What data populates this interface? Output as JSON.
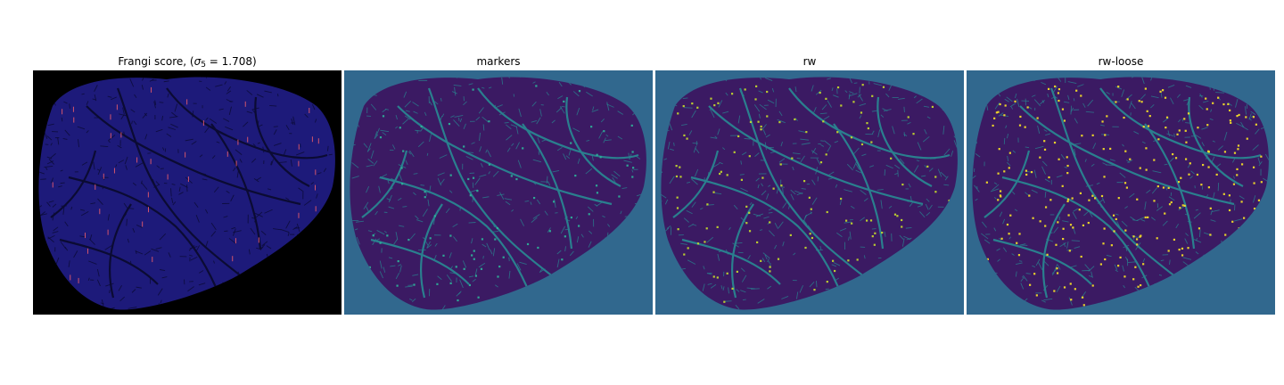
{
  "figure": {
    "panels": [
      {
        "id": "frangi",
        "title_text": "Frangi score, (",
        "title_sigma": "σ",
        "title_sub": "5",
        "title_rest": " = 1.708)",
        "background": "#000000",
        "blob_color": "#1d1a7a",
        "vessel_color": "#0b0b33",
        "highlight_color": "#e65b6a"
      },
      {
        "id": "markers",
        "title": "markers",
        "background": "#31688e",
        "blob_color": "#3b1a63",
        "vessel_color": "#2a7f8e",
        "highlight_color": "#2fb59a"
      },
      {
        "id": "rw",
        "title": "rw",
        "background": "#31688e",
        "blob_color": "#3b1a63",
        "vessel_color": "#2a7f8e",
        "highlight_color": "#c9e02a"
      },
      {
        "id": "rw-loose",
        "title": "rw-loose",
        "background": "#31688e",
        "blob_color": "#3b1a63",
        "vessel_color": "#2a7f8e",
        "highlight_color": "#fde725"
      }
    ]
  }
}
